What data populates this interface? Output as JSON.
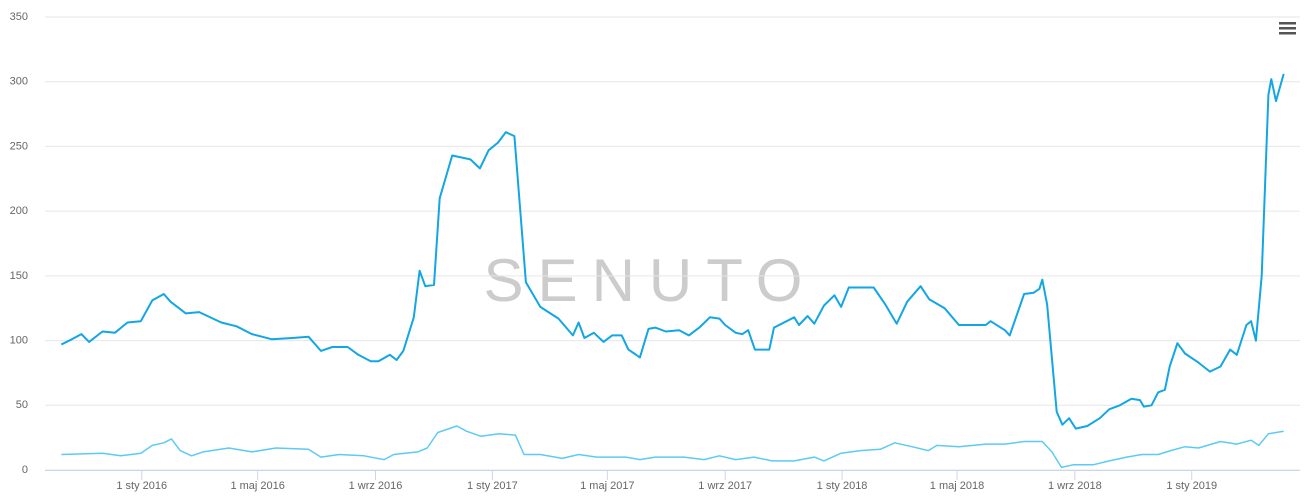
{
  "chart_data": {
    "type": "line",
    "watermark": "SENUTO",
    "xlim": [
      "2015-09-22",
      "2019-04-24"
    ],
    "xticks": [
      {
        "value": "2016-01-01",
        "label": "1 sty 2016"
      },
      {
        "value": "2016-05-01",
        "label": "1 maj 2016"
      },
      {
        "value": "2016-09-01",
        "label": "1 wrz 2016"
      },
      {
        "value": "2017-01-01",
        "label": "1 sty 2017"
      },
      {
        "value": "2017-05-01",
        "label": "1 maj 2017"
      },
      {
        "value": "2017-09-01",
        "label": "1 wrz 2017"
      },
      {
        "value": "2018-01-01",
        "label": "1 sty 2018"
      },
      {
        "value": "2018-05-01",
        "label": "1 maj 2018"
      },
      {
        "value": "2018-09-01",
        "label": "1 wrz 2018"
      },
      {
        "value": "2019-01-01",
        "label": "1 sty 2019"
      }
    ],
    "ylim": [
      0,
      350
    ],
    "yticks": [
      0,
      50,
      100,
      150,
      200,
      250,
      300,
      350
    ],
    "grid": true,
    "series": [
      {
        "color": "#13a6e4",
        "x": [
          "2015-10-09",
          "2015-10-20",
          "2015-10-30",
          "2015-11-07",
          "2015-11-21",
          "2015-12-04",
          "2015-12-17",
          "2015-12-31",
          "2016-01-12",
          "2016-01-24",
          "2016-01-31",
          "2016-02-16",
          "2016-03-01",
          "2016-03-24",
          "2016-04-09",
          "2016-04-25",
          "2016-05-16",
          "2016-06-06",
          "2016-06-23",
          "2016-07-06",
          "2016-07-18",
          "2016-08-03",
          "2016-08-14",
          "2016-08-27",
          "2016-09-04",
          "2016-09-16",
          "2016-09-23",
          "2016-09-30",
          "2016-10-11",
          "2016-10-17",
          "2016-10-23",
          "2016-11-01",
          "2016-11-07",
          "2016-11-20",
          "2016-12-09",
          "2016-12-19",
          "2016-12-28",
          "2017-01-07",
          "2017-01-15",
          "2017-01-24",
          "2017-02-05",
          "2017-02-20",
          "2017-03-11",
          "2017-03-26",
          "2017-04-01",
          "2017-04-07",
          "2017-04-17",
          "2017-04-27",
          "2017-05-06",
          "2017-05-16",
          "2017-05-23",
          "2017-06-04",
          "2017-06-13",
          "2017-06-20",
          "2017-07-01",
          "2017-07-15",
          "2017-07-25",
          "2017-08-05",
          "2017-08-16",
          "2017-08-26",
          "2017-09-01",
          "2017-09-12",
          "2017-09-19",
          "2017-09-25",
          "2017-10-02",
          "2017-10-17",
          "2017-10-22",
          "2017-11-12",
          "2017-11-17",
          "2017-11-26",
          "2017-12-03",
          "2017-12-13",
          "2017-12-24",
          "2017-12-31",
          "2018-01-08",
          "2018-02-03",
          "2018-02-15",
          "2018-02-27",
          "2018-03-10",
          "2018-03-24",
          "2018-04-02",
          "2018-04-18",
          "2018-05-03",
          "2018-05-31",
          "2018-06-05",
          "2018-06-20",
          "2018-06-25",
          "2018-07-10",
          "2018-07-20",
          "2018-07-26",
          "2018-07-29",
          "2018-08-03",
          "2018-08-13",
          "2018-08-19",
          "2018-08-26",
          "2018-09-02",
          "2018-09-14",
          "2018-09-27",
          "2018-10-07",
          "2018-10-18",
          "2018-10-30",
          "2018-11-08",
          "2018-11-12",
          "2018-11-20",
          "2018-11-27",
          "2018-12-04",
          "2018-12-09",
          "2018-12-17",
          "2018-12-25",
          "2019-01-08",
          "2019-01-20",
          "2019-01-31",
          "2019-02-10",
          "2019-02-17",
          "2019-02-27",
          "2019-03-04",
          "2019-03-09",
          "2019-03-15",
          "2019-03-22",
          "2019-03-25",
          "2019-03-30",
          "2019-04-07"
        ],
        "values": [
          97,
          101,
          105,
          99,
          107,
          106,
          114,
          115,
          131,
          136,
          130,
          121,
          122,
          114,
          111,
          105,
          101,
          102,
          103,
          92,
          95,
          95,
          89,
          84,
          84,
          89,
          85,
          92,
          118,
          154,
          142,
          143,
          210,
          243,
          240,
          233,
          247,
          253,
          261,
          258,
          145,
          126,
          117,
          104,
          114,
          102,
          106,
          99,
          104,
          104,
          93,
          87,
          109,
          110,
          107,
          108,
          104,
          110,
          118,
          117,
          112,
          106,
          105,
          108,
          93,
          93,
          110,
          118,
          112,
          119,
          113,
          127,
          135,
          126,
          141,
          141,
          128,
          113,
          130,
          142,
          132,
          125,
          112,
          112,
          115,
          108,
          104,
          136,
          137,
          140,
          147,
          128,
          45,
          35,
          40,
          32,
          34,
          40,
          47,
          50,
          55,
          54,
          49,
          50,
          60,
          62,
          80,
          98,
          90,
          83,
          76,
          80,
          93,
          89,
          112,
          115,
          100,
          150,
          290,
          302,
          285,
          306
        ]
      },
      {
        "color": "#5ccbf4",
        "x": [
          "2015-10-09",
          "2015-11-21",
          "2015-12-10",
          "2015-12-31",
          "2016-01-12",
          "2016-01-24",
          "2016-02-01",
          "2016-02-10",
          "2016-02-22",
          "2016-03-05",
          "2016-04-01",
          "2016-04-25",
          "2016-05-20",
          "2016-06-23",
          "2016-07-06",
          "2016-07-25",
          "2016-08-20",
          "2016-09-10",
          "2016-09-20",
          "2016-10-15",
          "2016-10-25",
          "2016-11-05",
          "2016-11-25",
          "2016-12-05",
          "2016-12-20",
          "2017-01-08",
          "2017-01-25",
          "2017-02-03",
          "2017-02-20",
          "2017-03-15",
          "2017-04-01",
          "2017-04-20",
          "2017-05-20",
          "2017-06-04",
          "2017-06-20",
          "2017-07-20",
          "2017-08-10",
          "2017-08-26",
          "2017-09-12",
          "2017-10-01",
          "2017-10-20",
          "2017-11-12",
          "2017-12-03",
          "2017-12-13",
          "2017-12-31",
          "2018-01-20",
          "2018-02-10",
          "2018-02-25",
          "2018-03-15",
          "2018-04-01",
          "2018-04-10",
          "2018-05-03",
          "2018-05-31",
          "2018-06-20",
          "2018-07-10",
          "2018-07-29",
          "2018-08-08",
          "2018-08-18",
          "2018-08-30",
          "2018-09-20",
          "2018-10-07",
          "2018-10-25",
          "2018-11-10",
          "2018-11-27",
          "2018-12-10",
          "2018-12-25",
          "2019-01-08",
          "2019-01-31",
          "2019-02-17",
          "2019-03-04",
          "2019-03-12",
          "2019-03-22",
          "2019-04-07"
        ],
        "values": [
          12,
          13,
          11,
          13,
          19,
          21,
          24,
          15,
          11,
          14,
          17,
          14,
          17,
          16,
          10,
          12,
          11,
          8,
          12,
          14,
          17,
          29,
          34,
          30,
          26,
          28,
          27,
          12,
          12,
          9,
          12,
          10,
          10,
          8,
          10,
          10,
          8,
          11,
          8,
          10,
          7,
          7,
          10,
          7,
          13,
          15,
          16,
          21,
          18,
          15,
          19,
          18,
          20,
          20,
          22,
          22,
          14,
          2,
          4,
          4,
          7,
          10,
          12,
          12,
          15,
          18,
          17,
          22,
          20,
          23,
          19,
          28,
          30
        ]
      }
    ]
  }
}
